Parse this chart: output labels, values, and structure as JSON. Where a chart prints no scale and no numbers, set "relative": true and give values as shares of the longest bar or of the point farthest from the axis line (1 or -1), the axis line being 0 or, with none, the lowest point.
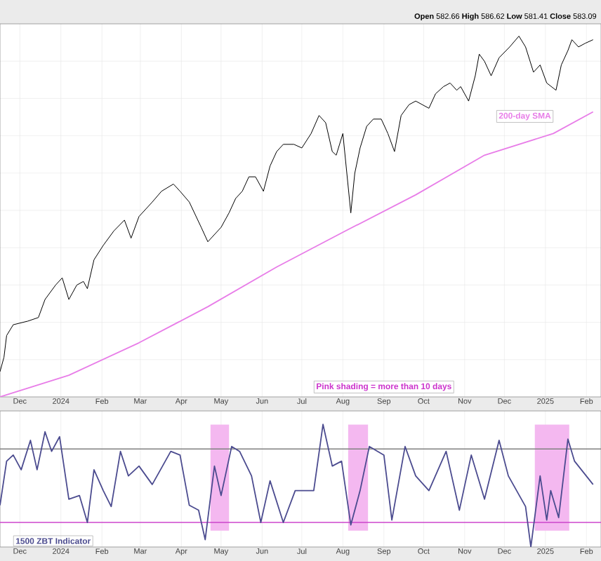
{
  "chart_data": [
    {
      "type": "line",
      "relative": true,
      "xlim": [
        "2023-11-16",
        "2025-02-12"
      ],
      "xticks": [
        {
          "value": "2023-12-01",
          "label": "Dec"
        },
        {
          "value": "2024-01-01",
          "label": "2024"
        },
        {
          "value": "2024-02-01",
          "label": "Feb"
        },
        {
          "value": "2024-03-01",
          "label": "Mar"
        },
        {
          "value": "2024-04-01",
          "label": "Apr"
        },
        {
          "value": "2024-05-01",
          "label": "May"
        },
        {
          "value": "2024-06-01",
          "label": "Jun"
        },
        {
          "value": "2024-07-01",
          "label": "Jul"
        },
        {
          "value": "2024-08-01",
          "label": "Aug"
        },
        {
          "value": "2024-09-01",
          "label": "Sep"
        },
        {
          "value": "2024-10-01",
          "label": "Oct"
        },
        {
          "value": "2024-11-01",
          "label": "Nov"
        },
        {
          "value": "2024-12-01",
          "label": "Dec"
        },
        {
          "value": "2025-01-01",
          "label": "2025"
        },
        {
          "value": "2025-02-01",
          "label": "Feb"
        }
      ],
      "tick_labels": "x",
      "grid": true,
      "series": [
        {
          "color": "#000000",
          "x": [
            "2023-11-16",
            "2023-11-19",
            "2023-11-21",
            "2023-11-26",
            "2023-12-07",
            "2023-12-15",
            "2023-12-20",
            "2023-12-28",
            "2024-01-02",
            "2024-01-07",
            "2024-01-13",
            "2024-01-18",
            "2024-01-21",
            "2024-01-26",
            "2024-02-02",
            "2024-02-10",
            "2024-02-18",
            "2024-02-23",
            "2024-02-29",
            "2024-03-10",
            "2024-03-17",
            "2024-03-26",
            "2024-03-31",
            "2024-04-07",
            "2024-04-16",
            "2024-04-21",
            "2024-05-01",
            "2024-05-07",
            "2024-05-12",
            "2024-05-17",
            "2024-05-22",
            "2024-05-27",
            "2024-06-02",
            "2024-06-07",
            "2024-06-12",
            "2024-06-17",
            "2024-06-25",
            "2024-07-01",
            "2024-07-08",
            "2024-07-14",
            "2024-07-19",
            "2024-07-24",
            "2024-07-27",
            "2024-08-01",
            "2024-08-07",
            "2024-08-10",
            "2024-08-14",
            "2024-08-19",
            "2024-08-24",
            "2024-08-30",
            "2024-09-04",
            "2024-09-09",
            "2024-09-14",
            "2024-09-20",
            "2024-09-25",
            "2024-09-30",
            "2024-10-05",
            "2024-10-10",
            "2024-10-16",
            "2024-10-21",
            "2024-10-26",
            "2024-10-29",
            "2024-11-04",
            "2024-11-09",
            "2024-11-12",
            "2024-11-16",
            "2024-11-21",
            "2024-11-27",
            "2024-12-05",
            "2024-12-12",
            "2024-12-17",
            "2024-12-23",
            "2024-12-28",
            "2025-01-02",
            "2025-01-09",
            "2025-01-13",
            "2025-01-18",
            "2025-01-21",
            "2025-01-26",
            "2025-01-31",
            "2025-02-06"
          ],
          "values": [
            0.07,
            0.11,
            0.17,
            0.2,
            0.21,
            0.22,
            0.27,
            0.31,
            0.33,
            0.27,
            0.31,
            0.32,
            0.3,
            0.38,
            0.42,
            0.46,
            0.49,
            0.44,
            0.5,
            0.54,
            0.57,
            0.59,
            0.57,
            0.54,
            0.47,
            0.43,
            0.47,
            0.51,
            0.55,
            0.57,
            0.61,
            0.61,
            0.57,
            0.64,
            0.68,
            0.7,
            0.7,
            0.69,
            0.73,
            0.78,
            0.76,
            0.68,
            0.67,
            0.73,
            0.51,
            0.62,
            0.69,
            0.75,
            0.77,
            0.77,
            0.73,
            0.68,
            0.78,
            0.81,
            0.82,
            0.81,
            0.8,
            0.84,
            0.86,
            0.87,
            0.85,
            0.86,
            0.82,
            0.89,
            0.95,
            0.93,
            0.89,
            0.94,
            0.97,
            1.0,
            0.97,
            0.9,
            0.92,
            0.87,
            0.85,
            0.92,
            0.96,
            0.99,
            0.97,
            0.98,
            0.99
          ]
        },
        {
          "name": "200-day SMA",
          "color": "#e87de8",
          "x": [
            "2023-11-16",
            "2024-01-07",
            "2024-02-29",
            "2024-04-21",
            "2024-06-12",
            "2024-08-03",
            "2024-09-25",
            "2024-11-16",
            "2025-01-07",
            "2025-02-06"
          ],
          "values": [
            0,
            0.06,
            0.15,
            0.25,
            0.36,
            0.46,
            0.56,
            0.67,
            0.73,
            0.79
          ]
        }
      ],
      "annotations": [
        "**Open** 582.66 **High** 586.62 **Low** 581.41 **Close** 583.09",
        "Pink shading = more than 10 days"
      ]
    },
    {
      "type": "line",
      "relative": true,
      "xlim": [
        "2023-11-16",
        "2025-02-12"
      ],
      "xticks": [
        {
          "value": "2023-12-01",
          "label": "Dec"
        },
        {
          "value": "2024-01-01",
          "label": "2024"
        },
        {
          "value": "2024-02-01",
          "label": "Feb"
        },
        {
          "value": "2024-03-01",
          "label": "Mar"
        },
        {
          "value": "2024-04-01",
          "label": "Apr"
        },
        {
          "value": "2024-05-01",
          "label": "May"
        },
        {
          "value": "2024-06-01",
          "label": "Jun"
        },
        {
          "value": "2024-07-01",
          "label": "Jul"
        },
        {
          "value": "2024-08-01",
          "label": "Aug"
        },
        {
          "value": "2024-09-01",
          "label": "Sep"
        },
        {
          "value": "2024-10-01",
          "label": "Oct"
        },
        {
          "value": "2024-11-01",
          "label": "Nov"
        },
        {
          "value": "2024-12-01",
          "label": "Dec"
        },
        {
          "value": "2025-01-01",
          "label": "2025"
        },
        {
          "value": "2025-02-01",
          "label": "Feb"
        }
      ],
      "tick_labels": "x",
      "grid": "x",
      "series": [
        {
          "name": "1500 ZBT Indicator",
          "color": "#4b4b8f",
          "x": [
            "2023-11-16",
            "2023-11-21",
            "2023-11-26",
            "2023-12-02",
            "2023-12-09",
            "2023-12-14",
            "2023-12-20",
            "2023-12-25",
            "2023-12-31",
            "2024-01-07",
            "2024-01-15",
            "2024-01-21",
            "2024-01-26",
            "2024-02-02",
            "2024-02-08",
            "2024-02-15",
            "2024-02-21",
            "2024-02-29",
            "2024-03-10",
            "2024-03-24",
            "2024-03-31",
            "2024-04-07",
            "2024-04-14",
            "2024-04-19",
            "2024-04-26",
            "2024-05-01",
            "2024-05-09",
            "2024-05-15",
            "2024-05-24",
            "2024-05-31",
            "2024-06-07",
            "2024-06-17",
            "2024-06-26",
            "2024-07-10",
            "2024-07-17",
            "2024-07-24",
            "2024-07-31",
            "2024-08-07",
            "2024-08-14",
            "2024-08-21",
            "2024-09-01",
            "2024-09-07",
            "2024-09-17",
            "2024-09-25",
            "2024-10-05",
            "2024-10-18",
            "2024-10-28",
            "2024-11-06",
            "2024-11-16",
            "2024-11-27",
            "2024-12-04",
            "2024-12-17",
            "2024-12-21",
            "2024-12-28",
            "2025-01-02",
            "2025-01-05",
            "2025-01-11",
            "2025-01-18",
            "2025-01-23",
            "2025-02-06"
          ],
          "values": [
            0.34,
            0.7,
            0.75,
            0.63,
            0.87,
            0.63,
            0.94,
            0.78,
            0.9,
            0.39,
            0.42,
            0.2,
            0.63,
            0.46,
            0.33,
            0.78,
            0.58,
            0.66,
            0.51,
            0.78,
            0.75,
            0.34,
            0.3,
            0.06,
            0.66,
            0.42,
            0.82,
            0.78,
            0.58,
            0.2,
            0.54,
            0.2,
            0.46,
            0.46,
            1.0,
            0.66,
            0.7,
            0.18,
            0.46,
            0.82,
            0.75,
            0.22,
            0.82,
            0.58,
            0.46,
            0.78,
            0.3,
            0.75,
            0.39,
            0.87,
            0.58,
            0.33,
            0.0,
            0.58,
            0.22,
            0.46,
            0.24,
            0.88,
            0.7,
            0.51
          ]
        }
      ],
      "ref_lines": [
        {
          "axis": "y",
          "value": 0.8,
          "color": "#808080"
        },
        {
          "axis": "y",
          "value": 0.2,
          "color": "#cc44cc"
        }
      ],
      "bands": [
        {
          "axis": "x",
          "from": "2024-04-23",
          "to": "2024-05-07",
          "color": "#f4b8f0"
        },
        {
          "axis": "x",
          "from": "2024-08-05",
          "to": "2024-08-20",
          "color": "#f4b8f0"
        },
        {
          "axis": "x",
          "from": "2024-12-24",
          "to": "2025-01-19",
          "color": "#f4b8f0"
        }
      ]
    }
  ]
}
